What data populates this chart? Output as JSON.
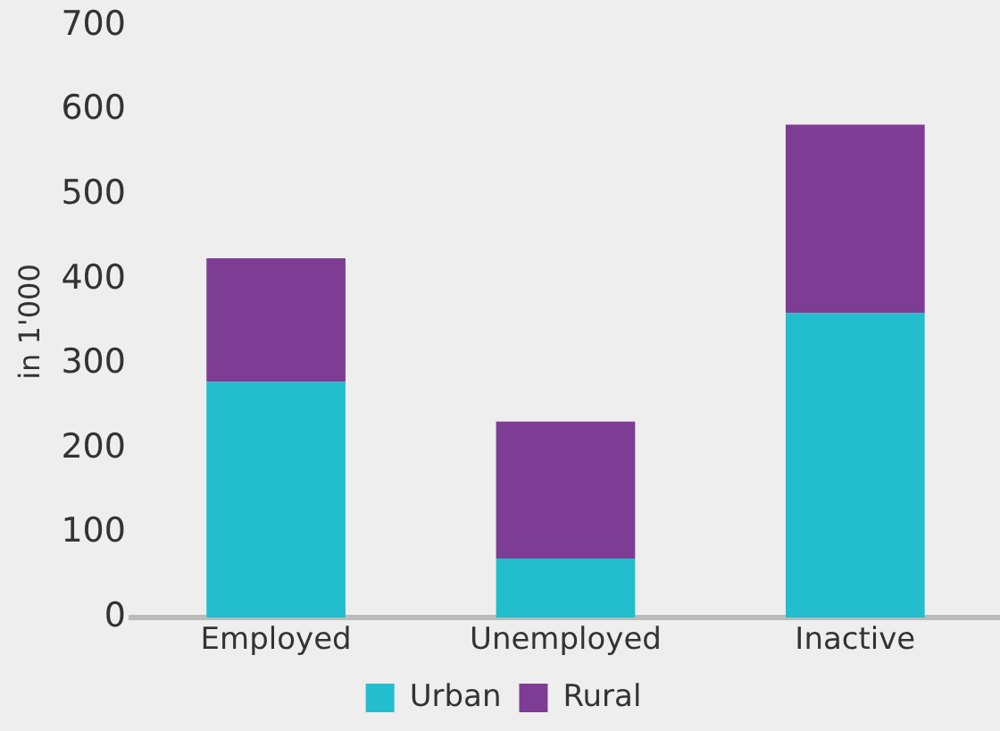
{
  "chart_data": {
    "type": "bar",
    "stacked": true,
    "ylabel": "in 1'000",
    "categories": [
      "Employed",
      "Unemployed",
      "Inactive"
    ],
    "series": [
      {
        "name": "Urban",
        "color": "#22bece",
        "values": [
          279,
          70,
          360
        ]
      },
      {
        "name": "Rural",
        "color": "#7e3d94",
        "values": [
          146,
          162,
          223
        ]
      }
    ],
    "ylim": [
      0,
      700
    ],
    "yticks": [
      0,
      100,
      200,
      300,
      400,
      500,
      600,
      700
    ],
    "grid": false,
    "legend": "bottom"
  }
}
